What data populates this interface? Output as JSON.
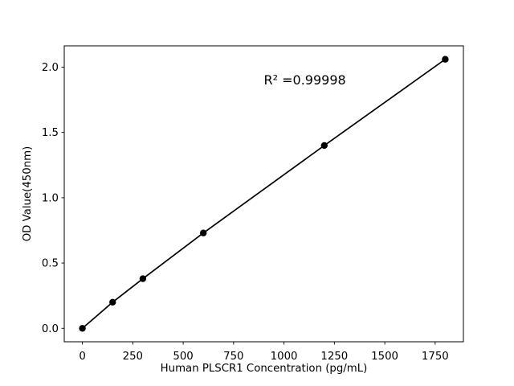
{
  "figure": {
    "background": "#ffffff",
    "frame_color": "#000000"
  },
  "chart_data": {
    "type": "line",
    "title": "",
    "xlabel": "Human PLSCR1 Concentration (pg/mL)",
    "ylabel": "OD Value(450nm)",
    "x": [
      0,
      150,
      300,
      600,
      1200,
      1800
    ],
    "series": [
      {
        "name": "standard-curve",
        "values": [
          0.0,
          0.2,
          0.38,
          0.73,
          1.4,
          2.06
        ],
        "color": "#000000",
        "marker": "o"
      }
    ],
    "xlim": [
      -90,
      1890
    ],
    "ylim": [
      -0.103,
      2.163
    ],
    "xticks": [
      0,
      250,
      500,
      750,
      1000,
      1250,
      1500,
      1750
    ],
    "xtick_labels": [
      "0",
      "250",
      "500",
      "750",
      "1000",
      "1250",
      "1500",
      "1750"
    ],
    "yticks": [
      0.0,
      0.5,
      1.0,
      1.5,
      2.0
    ],
    "ytick_labels": [
      "0.0",
      "0.5",
      "1.0",
      "1.5",
      "2.0"
    ],
    "grid": false,
    "legend": null,
    "axes_color": "#000000",
    "tick_direction": "out",
    "annotation": {
      "text": "R² =0.99998",
      "x": 900,
      "y": 1.9
    }
  }
}
